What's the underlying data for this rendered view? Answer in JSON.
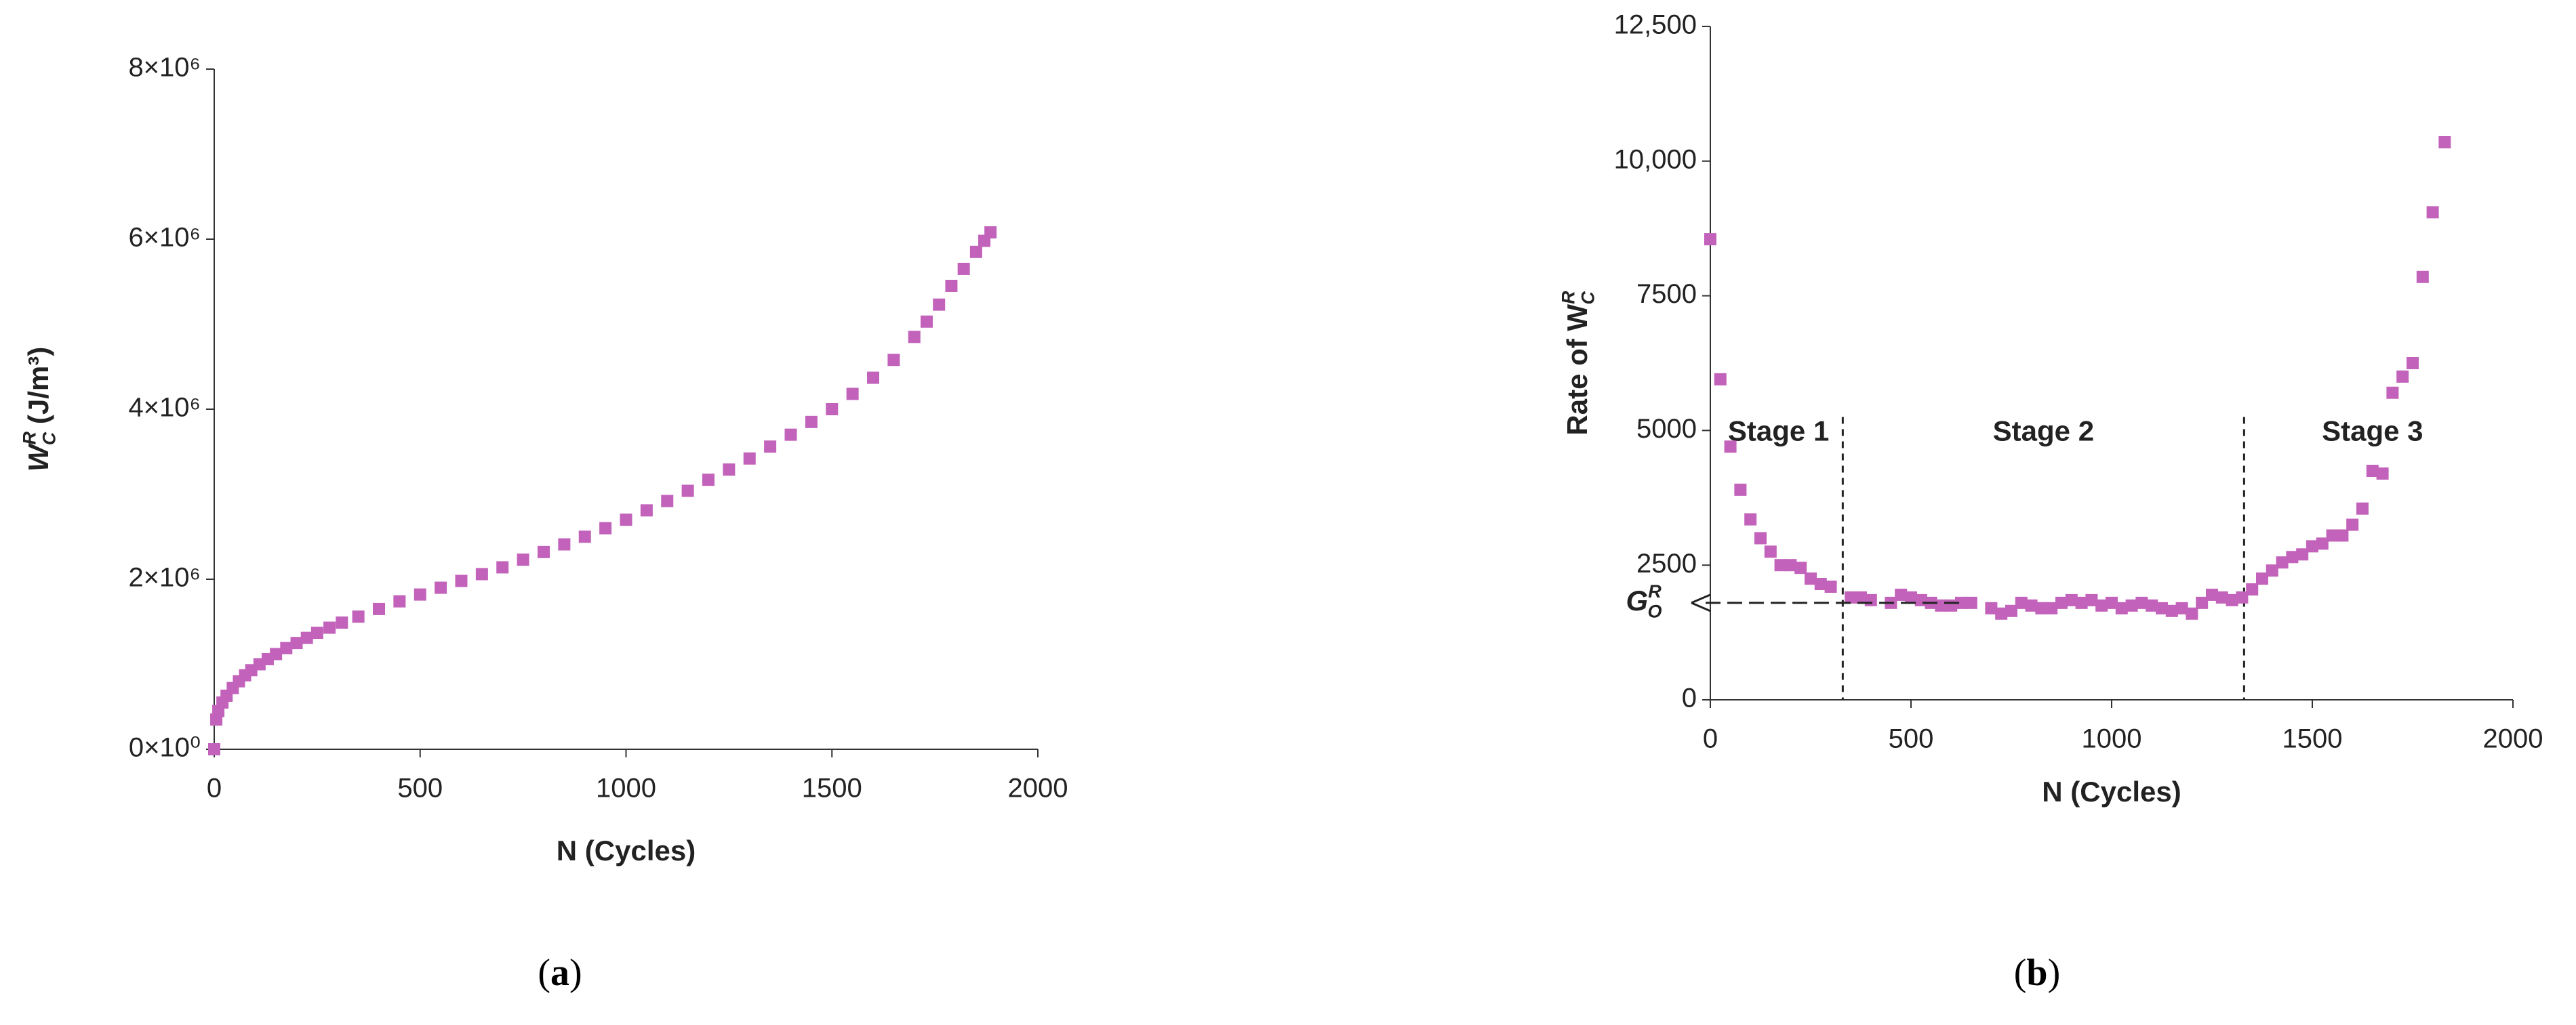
{
  "chart_data": [
    {
      "type": "scatter",
      "color": "#c262bb",
      "ylabel": {
        "base": "W",
        "sup": "R",
        "sub": "C",
        "rest": " (J/m³)"
      },
      "xlabel": "N (Cycles)",
      "caption": {
        "open": "(",
        "letter": "a",
        "close": ")"
      },
      "xlim": [
        0,
        2000
      ],
      "xticks": [
        0,
        500,
        1000,
        1500,
        2000
      ],
      "ylim": [
        0,
        8000000
      ],
      "yticks": [
        {
          "value": 0,
          "label": "0×10⁰"
        },
        {
          "value": 2000000,
          "label": "2×10⁶"
        },
        {
          "value": 4000000,
          "label": "4×10⁶"
        },
        {
          "value": 6000000,
          "label": "6×10⁶"
        },
        {
          "value": 8000000,
          "label": "8×10⁶"
        }
      ],
      "x": [
        0,
        5,
        10,
        20,
        30,
        45,
        60,
        75,
        90,
        110,
        130,
        150,
        175,
        200,
        225,
        250,
        280,
        310,
        350,
        400,
        450,
        500,
        550,
        600,
        650,
        700,
        750,
        800,
        850,
        900,
        950,
        1000,
        1050,
        1100,
        1150,
        1200,
        1250,
        1300,
        1350,
        1400,
        1450,
        1500,
        1550,
        1600,
        1650,
        1700,
        1730,
        1760,
        1790,
        1820,
        1850,
        1870,
        1885
      ],
      "values": [
        0,
        350000,
        450000,
        550000,
        630000,
        720000,
        800000,
        870000,
        930000,
        1000000,
        1060000,
        1120000,
        1190000,
        1250000,
        1310000,
        1370000,
        1430000,
        1490000,
        1560000,
        1650000,
        1740000,
        1820000,
        1900000,
        1980000,
        2060000,
        2140000,
        2230000,
        2320000,
        2410000,
        2500000,
        2600000,
        2700000,
        2810000,
        2920000,
        3040000,
        3170000,
        3290000,
        3420000,
        3560000,
        3700000,
        3850000,
        4000000,
        4180000,
        4370000,
        4580000,
        4850000,
        5030000,
        5230000,
        5450000,
        5650000,
        5850000,
        5980000,
        6080000
      ]
    },
    {
      "type": "scatter",
      "color": "#c262bb",
      "ylabel": {
        "base": "Rate of W",
        "sup": "R",
        "sub": "C"
      },
      "xlabel": "N (Cycles)",
      "caption": {
        "open": "(",
        "letter": "b",
        "close": ")"
      },
      "xlim": [
        0,
        2000
      ],
      "xticks": [
        0,
        500,
        1000,
        1500,
        2000
      ],
      "ylim": [
        0,
        12500
      ],
      "yticks": [
        0,
        2500,
        5000,
        7500,
        {
          "value": 10000,
          "label": "10,000"
        },
        {
          "value": 12500,
          "label": "12,500"
        }
      ],
      "x": [
        0,
        25,
        50,
        75,
        100,
        125,
        150,
        175,
        200,
        225,
        250,
        275,
        300,
        350,
        375,
        400,
        450,
        475,
        500,
        525,
        550,
        575,
        600,
        625,
        650,
        700,
        725,
        750,
        775,
        800,
        825,
        850,
        875,
        900,
        925,
        950,
        975,
        1000,
        1025,
        1050,
        1075,
        1100,
        1125,
        1150,
        1175,
        1200,
        1225,
        1250,
        1275,
        1300,
        1325,
        1350,
        1375,
        1400,
        1425,
        1450,
        1475,
        1500,
        1525,
        1550,
        1575,
        1600,
        1625,
        1650,
        1675,
        1700,
        1725,
        1750,
        1775,
        1800,
        1830
      ],
      "values": [
        8550,
        5950,
        4700,
        3900,
        3350,
        3000,
        2750,
        2500,
        2500,
        2450,
        2250,
        2150,
        2100,
        1900,
        1900,
        1850,
        1800,
        1950,
        1900,
        1850,
        1800,
        1750,
        1750,
        1800,
        1800,
        1700,
        1600,
        1650,
        1800,
        1750,
        1700,
        1700,
        1800,
        1850,
        1800,
        1850,
        1750,
        1800,
        1700,
        1750,
        1800,
        1750,
        1700,
        1650,
        1700,
        1600,
        1800,
        1950,
        1900,
        1850,
        1900,
        2050,
        2250,
        2400,
        2550,
        2650,
        2700,
        2850,
        2900,
        3050,
        3050,
        3250,
        3550,
        4250,
        4200,
        5700,
        6000,
        6250,
        7850,
        9050,
        10350
      ],
      "vlines": [
        330,
        1330
      ],
      "annotations": [
        {
          "text": "Stage 1",
          "x": 170,
          "y": 4950
        },
        {
          "text": "Stage 2",
          "x": 830,
          "y": 4950
        },
        {
          "text": "Stage 3",
          "x": 1650,
          "y": 4950
        }
      ],
      "arrow": {
        "y": 1800,
        "x": 620,
        "label": {
          "base": "G",
          "sup": "R",
          "sub": "O"
        }
      }
    }
  ]
}
